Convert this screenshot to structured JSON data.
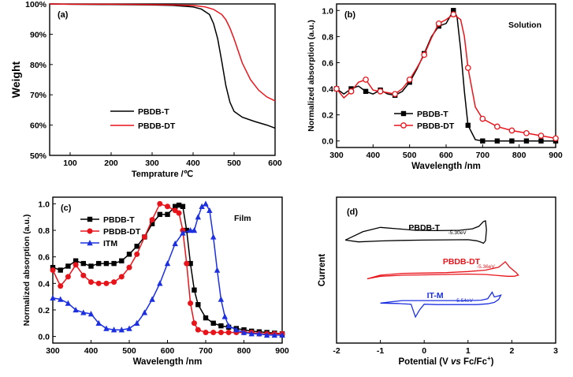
{
  "colors": {
    "black": "#000000",
    "red": "#e8141b",
    "blue": "#1c30e0"
  },
  "chart_data": [
    {
      "id": "a",
      "type": "line",
      "panel_label": "(a)",
      "xlabel": "Temprature /℃",
      "ylabel": "Weight",
      "xlim": [
        50,
        600
      ],
      "ylim": [
        50,
        100
      ],
      "xticks": [
        100,
        200,
        300,
        400,
        500,
        600
      ],
      "yticks": [
        50,
        60,
        70,
        80,
        90,
        100
      ],
      "ytick_labels": [
        "50%",
        "60%",
        "70%",
        "80%",
        "90%",
        "100%"
      ],
      "legend_position": "bottom-right",
      "series": [
        {
          "name": "PBDB-T",
          "color": "#000000",
          "marker": "none",
          "x": [
            50,
            100,
            200,
            300,
            350,
            400,
            420,
            440,
            450,
            460,
            470,
            480,
            490,
            500,
            520,
            550,
            580,
            600
          ],
          "y": [
            100,
            99.9,
            99.8,
            99.7,
            99.5,
            99.0,
            98.3,
            96.5,
            93.5,
            88.5,
            81,
            73,
            67.5,
            64.5,
            62.6,
            61.2,
            60.0,
            59.0
          ]
        },
        {
          "name": "PBDB-DT",
          "color": "#e8141b",
          "marker": "none",
          "x": [
            50,
            100,
            200,
            300,
            350,
            400,
            430,
            450,
            470,
            480,
            490,
            500,
            510,
            520,
            540,
            560,
            580,
            600
          ],
          "y": [
            100,
            99.9,
            99.9,
            99.8,
            99.7,
            99.5,
            99.0,
            98.2,
            96.5,
            94.8,
            92.0,
            88.5,
            84.5,
            80.5,
            75.0,
            71.5,
            69.3,
            68.0
          ]
        }
      ]
    },
    {
      "id": "b",
      "type": "line",
      "panel_label": "(b)",
      "annotation": "Solution",
      "xlabel": "Wavelength /nm",
      "ylabel": "Normalized absorption  (a.u.)",
      "xlim": [
        300,
        900
      ],
      "ylim": [
        -0.05,
        1.05
      ],
      "xticks": [
        300,
        400,
        500,
        600,
        700,
        800,
        900
      ],
      "yticks": [
        0.0,
        0.2,
        0.4,
        0.6,
        0.8,
        1.0
      ],
      "ytick_labels": [
        "0.0",
        "0.2",
        "0.4",
        "0.6",
        "0.8",
        "1.0"
      ],
      "legend_position": "middle-right",
      "series": [
        {
          "name": "PBDB-T",
          "color": "#000000",
          "marker": "square-filled",
          "x": [
            300,
            320,
            340,
            360,
            380,
            400,
            420,
            440,
            460,
            480,
            500,
            520,
            540,
            560,
            580,
            600,
            620,
            630,
            640,
            650,
            660,
            680,
            700,
            750,
            800,
            850,
            900
          ],
          "y": [
            0.4,
            0.36,
            0.4,
            0.42,
            0.38,
            0.36,
            0.39,
            0.36,
            0.35,
            0.38,
            0.45,
            0.55,
            0.67,
            0.8,
            0.88,
            0.9,
            1.0,
            0.95,
            0.7,
            0.38,
            0.12,
            0.01,
            0.0,
            0.0,
            0.0,
            0.0,
            0.0
          ],
          "marker_x": [
            300,
            340,
            380,
            420,
            460,
            500,
            540,
            580,
            620,
            660,
            700,
            740,
            780,
            820,
            860,
            900
          ]
        },
        {
          "name": "PBDB-DT",
          "color": "#e8141b",
          "marker": "circle-open",
          "x": [
            300,
            320,
            340,
            360,
            380,
            400,
            420,
            440,
            460,
            480,
            500,
            520,
            540,
            560,
            580,
            600,
            620,
            640,
            650,
            660,
            680,
            700,
            740,
            780,
            820,
            860,
            900
          ],
          "y": [
            0.4,
            0.33,
            0.38,
            0.45,
            0.47,
            0.39,
            0.38,
            0.37,
            0.36,
            0.4,
            0.47,
            0.56,
            0.66,
            0.79,
            0.9,
            0.93,
            0.97,
            0.93,
            0.8,
            0.56,
            0.26,
            0.17,
            0.11,
            0.08,
            0.06,
            0.04,
            0.02
          ],
          "marker_x": [
            300,
            340,
            380,
            420,
            460,
            500,
            540,
            580,
            620,
            660,
            700,
            740,
            780,
            820,
            860,
            900
          ]
        }
      ]
    },
    {
      "id": "c",
      "type": "line",
      "panel_label": "(c)",
      "annotation": "Film",
      "xlabel": "Wavelength /nm",
      "ylabel": "Normalized absorption  (a.u.)",
      "xlim": [
        300,
        900
      ],
      "ylim": [
        -0.05,
        1.05
      ],
      "xticks": [
        300,
        400,
        500,
        600,
        700,
        800,
        900
      ],
      "yticks": [
        0.0,
        0.2,
        0.4,
        0.6,
        0.8,
        1.0
      ],
      "ytick_labels": [
        "0.0",
        "0.2",
        "0.4",
        "0.6",
        "0.8",
        "1.0"
      ],
      "legend_position": "top-left",
      "series": [
        {
          "name": "PBDB-T",
          "color": "#000000",
          "marker": "square-filled",
          "x": [
            300,
            320,
            340,
            360,
            380,
            400,
            420,
            440,
            460,
            480,
            500,
            520,
            540,
            560,
            580,
            600,
            620,
            630,
            640,
            650,
            660,
            670,
            680,
            700,
            720,
            740,
            760,
            780,
            800,
            820,
            840,
            860,
            880,
            900
          ],
          "y": [
            0.52,
            0.5,
            0.53,
            0.57,
            0.55,
            0.53,
            0.55,
            0.55,
            0.55,
            0.57,
            0.62,
            0.68,
            0.75,
            0.85,
            0.92,
            0.92,
            0.98,
            0.99,
            0.98,
            0.8,
            0.55,
            0.35,
            0.24,
            0.14,
            0.1,
            0.08,
            0.07,
            0.06,
            0.05,
            0.04,
            0.035,
            0.03,
            0.025,
            0.02
          ]
        },
        {
          "name": "PBDB-DT",
          "color": "#e8141b",
          "marker": "circle-filled",
          "x": [
            300,
            320,
            340,
            360,
            380,
            400,
            420,
            440,
            460,
            480,
            500,
            520,
            540,
            560,
            580,
            600,
            620,
            630,
            640,
            650,
            660,
            670,
            680,
            700,
            720,
            740,
            760,
            780,
            800,
            820,
            840,
            860,
            880,
            900
          ],
          "y": [
            0.5,
            0.38,
            0.45,
            0.54,
            0.46,
            0.41,
            0.4,
            0.4,
            0.41,
            0.45,
            0.52,
            0.62,
            0.75,
            0.88,
            1.0,
            0.98,
            0.95,
            0.93,
            0.8,
            0.55,
            0.25,
            0.1,
            0.05,
            0.03,
            0.03,
            0.03,
            0.03,
            0.03,
            0.03,
            0.03,
            0.02,
            0.02,
            0.02,
            0.02
          ]
        },
        {
          "name": "ITM",
          "color": "#1c30e0",
          "marker": "triangle-filled",
          "x": [
            300,
            320,
            340,
            360,
            380,
            400,
            420,
            440,
            460,
            480,
            500,
            520,
            540,
            560,
            580,
            600,
            620,
            640,
            660,
            670,
            680,
            690,
            700,
            710,
            720,
            730,
            740,
            750,
            760,
            780,
            800,
            820,
            840,
            860,
            880,
            900
          ],
          "y": [
            0.29,
            0.28,
            0.25,
            0.2,
            0.18,
            0.17,
            0.1,
            0.06,
            0.05,
            0.05,
            0.06,
            0.1,
            0.18,
            0.28,
            0.4,
            0.55,
            0.7,
            0.78,
            0.8,
            0.8,
            0.9,
            0.98,
            1.0,
            0.95,
            0.75,
            0.5,
            0.28,
            0.15,
            0.08,
            0.05,
            0.03,
            0.02,
            0.02,
            0.01,
            0.01,
            0.01
          ]
        }
      ]
    },
    {
      "id": "d",
      "type": "line",
      "panel_label": "(d)",
      "xlabel_parts": [
        "Potential (V ",
        "vs",
        " Fc/Fc",
        "+",
        ")"
      ],
      "ylabel": "Current",
      "xlim": [
        -2,
        3
      ],
      "xticks": [
        -2,
        -1,
        0,
        1,
        2,
        3
      ],
      "curve_labels": [
        {
          "text": "PBDB-T",
          "color": "#000000",
          "x": 0.0,
          "level": 0
        },
        {
          "text": "PBDB-DT",
          "color": "#e8141b",
          "x": 0.85,
          "level": 1
        },
        {
          "text": "IT-M",
          "color": "#1c30e0",
          "x": 0.25,
          "level": 2
        }
      ],
      "energy_labels": [
        {
          "text": "-5.30eV",
          "color": "#000000",
          "x": 0.55,
          "level": 0
        },
        {
          "text": "-5.36eV",
          "color": "#e8141b",
          "x": 1.2,
          "level": 1
        },
        {
          "text": "-5.54eV",
          "color": "#1c30e0",
          "x": 0.7,
          "level": 2
        }
      ],
      "series": [
        {
          "name": "PBDB-T",
          "color": "#000000",
          "level": 0,
          "x": [
            -1.8,
            -1.5,
            -1.0,
            -0.5,
            0.0,
            0.5,
            1.0,
            1.2,
            1.3,
            1.35,
            1.4,
            1.42,
            1.4,
            1.35,
            1.25,
            1.1,
            0.8,
            0.3,
            -0.2,
            -0.6,
            -1.0,
            -1.4,
            -1.8
          ],
          "y": [
            -0.3,
            -0.8,
            -0.55,
            -0.4,
            -0.3,
            -0.25,
            -0.2,
            -0.5,
            -0.9,
            -1.2,
            -0.5,
            2.5,
            5.0,
            4.8,
            3.5,
            2.8,
            2.4,
            2.3,
            2.4,
            2.8,
            3.2,
            2.0,
            -0.3
          ]
        },
        {
          "name": "PBDB-DT",
          "color": "#e8141b",
          "level": 1,
          "x": [
            -1.3,
            -1.0,
            -0.5,
            0.0,
            0.5,
            1.0,
            1.4,
            1.7,
            1.9,
            2.05,
            2.15,
            2.1,
            1.95,
            1.85,
            1.7,
            1.4,
            1.0,
            0.5,
            0.0,
            -0.5,
            -1.0,
            -1.3
          ],
          "y": [
            -1.2,
            -0.5,
            -0.2,
            -0.1,
            0.0,
            0.1,
            0.0,
            -0.3,
            -0.5,
            -0.5,
            -0.2,
            0.5,
            2.0,
            3.5,
            2.0,
            1.2,
            0.8,
            0.5,
            0.4,
            0.3,
            -0.2,
            -1.2
          ]
        },
        {
          "name": "IT-M",
          "color": "#1c30e0",
          "level": 2,
          "x": [
            -1.0,
            -0.6,
            -0.3,
            -0.2,
            -0.1,
            0.0,
            0.3,
            0.8,
            1.2,
            1.45,
            1.6,
            1.7,
            1.75,
            1.7,
            1.6,
            1.55,
            1.45,
            1.3,
            1.0,
            0.5,
            0.0,
            -0.5,
            -1.0
          ],
          "y": [
            0.8,
            0.7,
            0.5,
            -3.0,
            -1.0,
            0.5,
            0.4,
            0.4,
            0.4,
            0.6,
            1.0,
            1.8,
            3.0,
            2.8,
            2.5,
            3.8,
            2.0,
            1.6,
            1.5,
            1.5,
            1.5,
            1.5,
            0.8
          ]
        }
      ]
    }
  ]
}
